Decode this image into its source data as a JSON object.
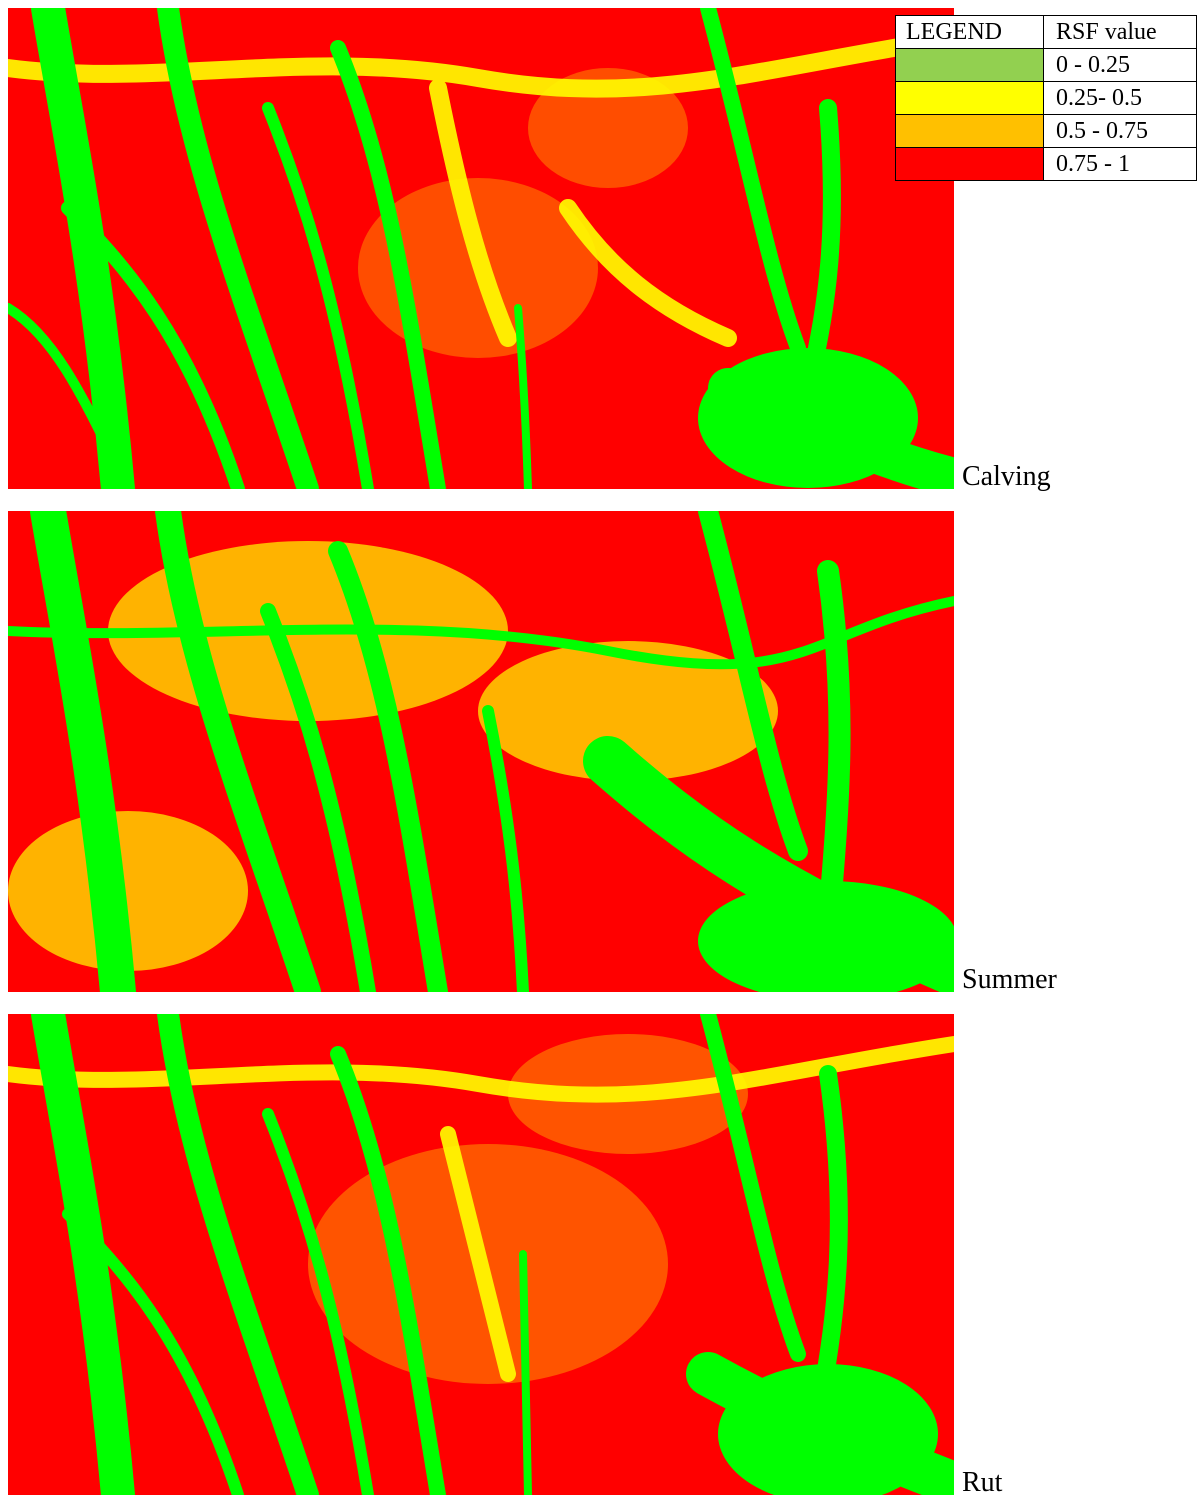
{
  "legend": {
    "header_left": "LEGEND",
    "header_right": "RSF value",
    "classes": [
      {
        "range": "0 - 0.25",
        "color": "#92d050"
      },
      {
        "range": "0.25- 0.5",
        "color": "#ffff00"
      },
      {
        "range": "0.5 - 0.75",
        "color": "#ffc000"
      },
      {
        "range": "0.75 - 1",
        "color": "#ff0000"
      }
    ]
  },
  "map_colors": {
    "low": "#00ff00",
    "mid_low": "#ffff00",
    "mid_high": "#ff8c00",
    "high": "#ff0000"
  },
  "maps": [
    {
      "label": "Calving",
      "icon": "rsf-raster-map"
    },
    {
      "label": "Summer",
      "icon": "rsf-raster-map"
    },
    {
      "label": "Rut",
      "icon": "rsf-raster-map"
    }
  ]
}
